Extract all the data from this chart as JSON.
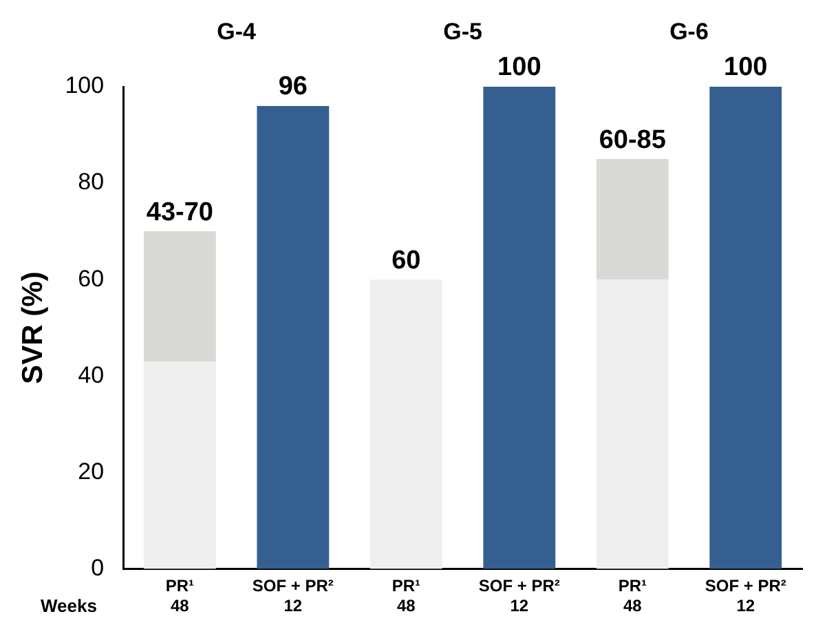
{
  "chart_data": {
    "type": "bar",
    "ylabel": "SVR (%)",
    "categories": [
      "PR¹\n48",
      "SOF + PR²\n12",
      "PR¹\n48",
      "SOF + PR²\n12",
      "PR¹\n48",
      "SOF + PR²\n12"
    ],
    "stacked": true,
    "series": [
      {
        "color": "#efefef",
        "values": [
          43,
          null,
          60,
          null,
          60,
          null
        ]
      },
      {
        "color": "#d9d9d6",
        "values": [
          27,
          null,
          null,
          null,
          25,
          null
        ]
      },
      {
        "color": "#365f91",
        "values": [
          null,
          96,
          null,
          100,
          null,
          100
        ]
      }
    ],
    "value_labels": [
      "43-70",
      "96",
      "60",
      "100",
      "60-85",
      "100"
    ],
    "annotations": [
      "G-4",
      "G-5",
      "G-6",
      "Weeks"
    ],
    "ylim": [
      0,
      100
    ],
    "yticks": [
      0,
      20,
      40,
      60,
      80,
      100
    ],
    "grid": false,
    "legend": false
  }
}
